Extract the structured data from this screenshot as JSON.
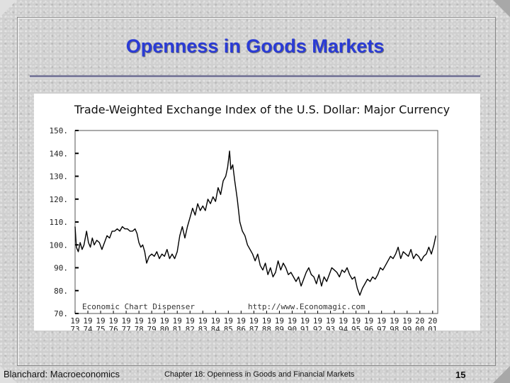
{
  "slide": {
    "title": "Openness in Goods Markets",
    "footer_left": "Blanchard: Macroeconomics",
    "footer_center": "Chapter 18: Openness in Goods and Financial Markets",
    "page_number": "15",
    "title_color": "#2a3bd6"
  },
  "chart_data": {
    "type": "line",
    "title": "Trade-Weighted Exchange Index of the U.S. Dollar: Major Currency",
    "xlabel": "",
    "ylabel": "",
    "xlim": [
      1973,
      2001.4
    ],
    "ylim": [
      70,
      150
    ],
    "y_ticks": [
      "150.",
      "140.",
      "130.",
      "120.",
      "110.",
      "100.",
      "90.",
      "80.",
      "70."
    ],
    "y_tick_values": [
      150,
      140,
      130,
      120,
      110,
      100,
      90,
      80,
      70
    ],
    "x_ticks": [
      {
        "top": "19",
        "bottom": "73",
        "year": 1973
      },
      {
        "top": "19",
        "bottom": "74",
        "year": 1974
      },
      {
        "top": "19",
        "bottom": "75",
        "year": 1975
      },
      {
        "top": "19",
        "bottom": "76",
        "year": 1976
      },
      {
        "top": "19",
        "bottom": "77",
        "year": 1977
      },
      {
        "top": "19",
        "bottom": "78",
        "year": 1978
      },
      {
        "top": "19",
        "bottom": "79",
        "year": 1979
      },
      {
        "top": "19",
        "bottom": "80",
        "year": 1980
      },
      {
        "top": "19",
        "bottom": "81",
        "year": 1981
      },
      {
        "top": "19",
        "bottom": "82",
        "year": 1982
      },
      {
        "top": "19",
        "bottom": "83",
        "year": 1983
      },
      {
        "top": "19",
        "bottom": "84",
        "year": 1984
      },
      {
        "top": "19",
        "bottom": "85",
        "year": 1985
      },
      {
        "top": "19",
        "bottom": "86",
        "year": 1986
      },
      {
        "top": "19",
        "bottom": "87",
        "year": 1987
      },
      {
        "top": "19",
        "bottom": "88",
        "year": 1988
      },
      {
        "top": "19",
        "bottom": "89",
        "year": 1989
      },
      {
        "top": "19",
        "bottom": "90",
        "year": 1990
      },
      {
        "top": "19",
        "bottom": "91",
        "year": 1991
      },
      {
        "top": "19",
        "bottom": "92",
        "year": 1992
      },
      {
        "top": "19",
        "bottom": "93",
        "year": 1993
      },
      {
        "top": "19",
        "bottom": "94",
        "year": 1994
      },
      {
        "top": "19",
        "bottom": "95",
        "year": 1995
      },
      {
        "top": "19",
        "bottom": "96",
        "year": 1996
      },
      {
        "top": "19",
        "bottom": "97",
        "year": 1997
      },
      {
        "top": "19",
        "bottom": "98",
        "year": 1998
      },
      {
        "top": "19",
        "bottom": "99",
        "year": 1999
      },
      {
        "top": "20",
        "bottom": "00",
        "year": 2000
      },
      {
        "top": "20",
        "bottom": "01",
        "year": 2001
      }
    ],
    "credit_left": "Economic Chart Dispenser",
    "credit_right": "http://www.Economagic.com",
    "grid": false,
    "line_color": "#000000",
    "series": [
      {
        "x": [
          1973.0,
          1973.1,
          1973.25,
          1973.4,
          1973.55,
          1973.7,
          1973.9,
          1974.05,
          1974.2,
          1974.35,
          1974.5,
          1974.7,
          1974.9,
          1975.1,
          1975.3,
          1975.5,
          1975.7,
          1975.9,
          1976.1,
          1976.3,
          1976.5,
          1976.7,
          1976.9,
          1977.1,
          1977.3,
          1977.5,
          1977.7,
          1977.85,
          1978.0,
          1978.15,
          1978.3,
          1978.45,
          1978.6,
          1978.8,
          1979.0,
          1979.2,
          1979.4,
          1979.6,
          1979.8,
          1980.0,
          1980.2,
          1980.4,
          1980.6,
          1980.8,
          1981.0,
          1981.2,
          1981.4,
          1981.6,
          1981.8,
          1982.0,
          1982.2,
          1982.4,
          1982.6,
          1982.8,
          1983.0,
          1983.2,
          1983.4,
          1983.6,
          1983.8,
          1984.0,
          1984.2,
          1984.4,
          1984.6,
          1984.8,
          1984.95,
          1985.1,
          1985.2,
          1985.35,
          1985.5,
          1985.7,
          1985.9,
          1986.1,
          1986.3,
          1986.5,
          1986.7,
          1986.9,
          1987.1,
          1987.3,
          1987.5,
          1987.7,
          1987.9,
          1988.1,
          1988.3,
          1988.5,
          1988.7,
          1988.9,
          1989.1,
          1989.3,
          1989.5,
          1989.7,
          1989.9,
          1990.1,
          1990.3,
          1990.5,
          1990.7,
          1990.9,
          1991.1,
          1991.3,
          1991.5,
          1991.7,
          1991.9,
          1992.1,
          1992.3,
          1992.5,
          1992.7,
          1992.9,
          1993.1,
          1993.3,
          1993.5,
          1993.7,
          1993.9,
          1994.1,
          1994.3,
          1994.5,
          1994.7,
          1994.9,
          1995.1,
          1995.3,
          1995.5,
          1995.7,
          1995.9,
          1996.1,
          1996.3,
          1996.5,
          1996.7,
          1996.9,
          1997.1,
          1997.3,
          1997.5,
          1997.7,
          1997.9,
          1998.1,
          1998.3,
          1998.5,
          1998.7,
          1998.9,
          1999.1,
          1999.3,
          1999.5,
          1999.7,
          1999.9,
          2000.1,
          2000.3,
          2000.5,
          2000.7,
          2000.9,
          2001.1,
          2001.25
        ],
        "y": [
          108,
          99,
          97,
          101,
          98,
          100,
          106,
          101,
          99,
          103,
          100,
          102,
          101,
          98,
          101,
          104,
          103,
          106,
          106,
          107,
          106,
          108,
          107,
          107,
          106,
          106,
          107,
          105,
          101,
          99,
          100,
          97,
          92,
          95,
          96,
          95,
          97,
          94,
          96,
          95,
          98,
          94,
          96,
          94,
          97,
          104,
          108,
          103,
          108,
          112,
          116,
          113,
          118,
          115,
          117,
          115,
          120,
          118,
          121,
          119,
          125,
          122,
          128,
          130,
          134,
          141,
          133,
          135,
          128,
          120,
          110,
          106,
          104,
          100,
          98,
          96,
          93,
          96,
          91,
          89,
          92,
          87,
          90,
          86,
          88,
          93,
          89,
          92,
          90,
          87,
          88,
          86,
          84,
          86,
          82,
          85,
          88,
          90,
          87,
          86,
          83,
          87,
          82,
          86,
          84,
          87,
          90,
          89,
          88,
          86,
          89,
          88,
          90,
          87,
          85,
          86,
          81,
          78,
          81,
          83,
          85,
          84,
          86,
          85,
          87,
          90,
          89,
          91,
          93,
          95,
          94,
          96,
          99,
          94,
          97,
          96,
          95,
          98,
          94,
          96,
          95,
          93,
          95,
          96,
          99,
          96,
          100,
          104
        ]
      }
    ]
  }
}
